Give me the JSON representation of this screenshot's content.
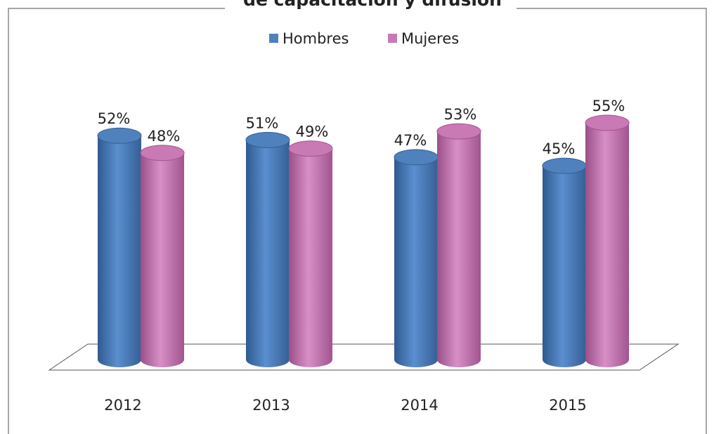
{
  "chart_data": {
    "type": "bar3d",
    "title": "de capacitación y difusión",
    "categories": [
      "2012",
      "2013",
      "2014",
      "2015"
    ],
    "series": [
      {
        "name": "Hombres",
        "color": "#4f81bd",
        "values": [
          52,
          51,
          47,
          45
        ],
        "value_labels": [
          "52%",
          "51%",
          "47%",
          "45%"
        ]
      },
      {
        "name": "Mujeres",
        "color": "#c979b4",
        "values": [
          48,
          49,
          53,
          55
        ],
        "value_labels": [
          "48%",
          "49%",
          "53%",
          "55%"
        ]
      }
    ],
    "legend": "top"
  }
}
